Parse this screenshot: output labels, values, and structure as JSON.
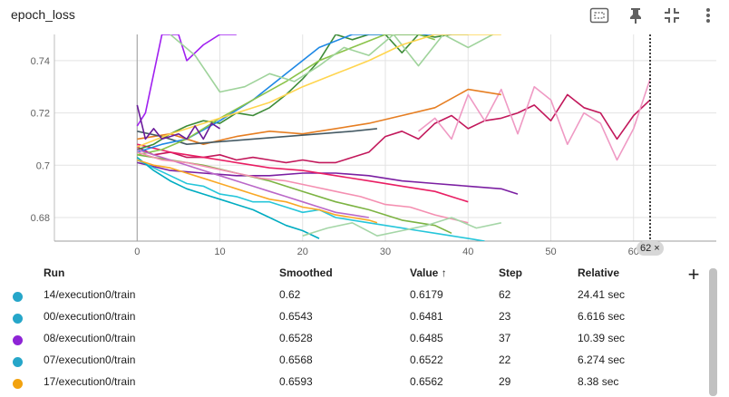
{
  "header": {
    "title": "epoch_loss",
    "icons": [
      "fit-domain-icon",
      "pin-icon",
      "collapse-icon",
      "more-vert-icon"
    ]
  },
  "chart_data": {
    "type": "line",
    "xlim": [
      -10,
      70
    ],
    "ylim": [
      0.671,
      0.75
    ],
    "x_ticks": [
      0,
      10,
      20,
      30,
      40,
      50,
      60
    ],
    "x_tick_labels": [
      "0",
      "10",
      "20",
      "30",
      "40",
      "50",
      "60"
    ],
    "y_ticks": [
      0.68,
      0.7,
      0.72,
      0.74
    ],
    "y_tick_labels": [
      "0.68",
      "0.7",
      "0.72",
      "0.74"
    ],
    "grid": true,
    "hover_step": 62,
    "hover_label": "62 ×",
    "series": [
      {
        "color": "#c2185b",
        "x": [
          0,
          2,
          4,
          6,
          8,
          10,
          12,
          14,
          16,
          18,
          20,
          22,
          24,
          26,
          28,
          30,
          32,
          34,
          36,
          38,
          40,
          42,
          44,
          46,
          48,
          50,
          52,
          54,
          56,
          58,
          60,
          62
        ],
        "y": [
          0.707,
          0.704,
          0.705,
          0.703,
          0.703,
          0.704,
          0.702,
          0.703,
          0.702,
          0.701,
          0.702,
          0.701,
          0.701,
          0.703,
          0.705,
          0.711,
          0.713,
          0.71,
          0.716,
          0.719,
          0.714,
          0.717,
          0.718,
          0.72,
          0.723,
          0.717,
          0.727,
          0.722,
          0.72,
          0.71,
          0.719,
          0.725
        ]
      },
      {
        "color": "#ef9ac4",
        "x": [
          34,
          36,
          38,
          40,
          42,
          44,
          46,
          48,
          50,
          52,
          54,
          56,
          58,
          60,
          62
        ],
        "y": [
          0.713,
          0.718,
          0.71,
          0.727,
          0.717,
          0.729,
          0.712,
          0.73,
          0.725,
          0.708,
          0.72,
          0.716,
          0.702,
          0.714,
          0.733
        ]
      },
      {
        "color": "#7b1fa2",
        "x": [
          0,
          4,
          8,
          12,
          16,
          20,
          24,
          28,
          32,
          36,
          40,
          44,
          46
        ],
        "y": [
          0.701,
          0.698,
          0.697,
          0.696,
          0.696,
          0.697,
          0.697,
          0.696,
          0.694,
          0.693,
          0.692,
          0.691,
          0.689
        ]
      },
      {
        "color": "#a020f0",
        "x": [
          0,
          1,
          2,
          3,
          4,
          5,
          6,
          8,
          10,
          12
        ],
        "y": [
          0.715,
          0.72,
          0.735,
          0.75,
          0.75,
          0.75,
          0.74,
          0.746,
          0.75,
          0.75
        ]
      },
      {
        "color": "#26c6da",
        "x": [
          0,
          2,
          4,
          6,
          8,
          10,
          12,
          14,
          16,
          18,
          20,
          22,
          24,
          26,
          28,
          30,
          32,
          34,
          36,
          38,
          40,
          42
        ],
        "y": [
          0.702,
          0.699,
          0.696,
          0.693,
          0.692,
          0.689,
          0.688,
          0.686,
          0.686,
          0.684,
          0.682,
          0.683,
          0.68,
          0.679,
          0.678,
          0.677,
          0.676,
          0.675,
          0.674,
          0.673,
          0.672,
          0.671
        ]
      },
      {
        "color": "#00acc1",
        "x": [
          0,
          2,
          4,
          6,
          8,
          10,
          12,
          14,
          16,
          18,
          20,
          22
        ],
        "y": [
          0.703,
          0.698,
          0.694,
          0.691,
          0.689,
          0.687,
          0.685,
          0.683,
          0.68,
          0.677,
          0.675,
          0.672
        ]
      },
      {
        "color": "#f9a825",
        "x": [
          0,
          2,
          4,
          6,
          8,
          10,
          12,
          14,
          16,
          18,
          20,
          22,
          24,
          26,
          28,
          29
        ],
        "y": [
          0.702,
          0.7,
          0.699,
          0.697,
          0.695,
          0.693,
          0.691,
          0.689,
          0.687,
          0.686,
          0.684,
          0.683,
          0.681,
          0.68,
          0.679,
          0.678
        ]
      },
      {
        "color": "#7cb342",
        "x": [
          0,
          4,
          8,
          12,
          16,
          20,
          24,
          28,
          32,
          36,
          38
        ],
        "y": [
          0.704,
          0.702,
          0.7,
          0.697,
          0.694,
          0.69,
          0.686,
          0.683,
          0.679,
          0.677,
          0.674
        ]
      },
      {
        "color": "#e67e22",
        "x": [
          0,
          4,
          8,
          12,
          16,
          20,
          24,
          28,
          32,
          36,
          40,
          44
        ],
        "y": [
          0.71,
          0.712,
          0.708,
          0.711,
          0.713,
          0.712,
          0.714,
          0.716,
          0.719,
          0.722,
          0.729,
          0.727
        ]
      },
      {
        "color": "#e91e63",
        "x": [
          0,
          4,
          8,
          12,
          16,
          20,
          24,
          28,
          32,
          36,
          40
        ],
        "y": [
          0.708,
          0.705,
          0.703,
          0.701,
          0.699,
          0.698,
          0.696,
          0.694,
          0.692,
          0.69,
          0.686
        ]
      },
      {
        "color": "#3d8b37",
        "x": [
          0,
          2,
          4,
          6,
          8,
          10,
          12,
          14,
          16,
          18,
          20,
          22,
          24,
          26,
          28,
          30,
          32,
          34,
          36,
          38,
          40
        ],
        "y": [
          0.706,
          0.708,
          0.712,
          0.715,
          0.717,
          0.716,
          0.72,
          0.719,
          0.722,
          0.727,
          0.733,
          0.74,
          0.75,
          0.748,
          0.75,
          0.75,
          0.743,
          0.75,
          0.749,
          0.75,
          0.75
        ]
      },
      {
        "color": "#455a64",
        "x": [
          0,
          3,
          6,
          10,
          14,
          18,
          22,
          26,
          29
        ],
        "y": [
          0.713,
          0.711,
          0.708,
          0.709,
          0.71,
          0.711,
          0.712,
          0.713,
          0.714
        ]
      },
      {
        "color": "#1e88e5",
        "x": [
          0,
          3,
          6,
          10,
          14,
          18,
          22,
          26,
          30,
          34,
          38
        ],
        "y": [
          0.705,
          0.708,
          0.71,
          0.717,
          0.725,
          0.735,
          0.745,
          0.75,
          0.75,
          0.75,
          0.75
        ]
      },
      {
        "color": "#8bc34a",
        "x": [
          0,
          3,
          6,
          10,
          14,
          18,
          22,
          26,
          30,
          34,
          36
        ],
        "y": [
          0.704,
          0.706,
          0.71,
          0.718,
          0.725,
          0.732,
          0.74,
          0.745,
          0.75,
          0.75,
          0.748
        ]
      },
      {
        "color": "#ba68c8",
        "x": [
          0,
          2,
          4,
          6,
          8,
          10,
          12,
          14,
          16,
          18,
          20,
          22,
          24,
          26,
          28
        ],
        "y": [
          0.706,
          0.704,
          0.702,
          0.7,
          0.698,
          0.696,
          0.694,
          0.692,
          0.69,
          0.688,
          0.686,
          0.684,
          0.682,
          0.681,
          0.68
        ]
      },
      {
        "color": "#f48fb1",
        "x": [
          0,
          3,
          6,
          9,
          12,
          15,
          18,
          21,
          24,
          27,
          30,
          33,
          36,
          40
        ],
        "y": [
          0.705,
          0.702,
          0.701,
          0.699,
          0.697,
          0.695,
          0.694,
          0.692,
          0.69,
          0.688,
          0.685,
          0.684,
          0.681,
          0.678
        ]
      },
      {
        "color": "#9fd39b",
        "x": [
          4,
          7,
          10,
          13,
          16,
          19,
          22,
          25,
          28,
          31,
          34,
          37,
          40,
          43
        ],
        "y": [
          0.75,
          0.742,
          0.728,
          0.73,
          0.735,
          0.732,
          0.738,
          0.745,
          0.742,
          0.75,
          0.738,
          0.75,
          0.745,
          0.75
        ]
      },
      {
        "color": "#ffd54f",
        "x": [
          0,
          4,
          8,
          12,
          16,
          20,
          24,
          28,
          32,
          36,
          40,
          44
        ],
        "y": [
          0.707,
          0.712,
          0.716,
          0.72,
          0.724,
          0.73,
          0.735,
          0.74,
          0.746,
          0.75,
          0.75,
          0.75
        ]
      },
      {
        "color": "#a5d6a7",
        "x": [
          20,
          23,
          26,
          29,
          32,
          35,
          38,
          41,
          44
        ],
        "y": [
          0.673,
          0.676,
          0.678,
          0.673,
          0.675,
          0.677,
          0.68,
          0.676,
          0.678
        ]
      },
      {
        "color": "#6a1b9a",
        "x": [
          0,
          1,
          2,
          3,
          4,
          5,
          6,
          7,
          8,
          9,
          10
        ],
        "y": [
          0.723,
          0.71,
          0.714,
          0.71,
          0.711,
          0.712,
          0.71,
          0.715,
          0.71,
          0.716,
          0.714
        ]
      }
    ]
  },
  "table": {
    "add_column_label": "+",
    "columns": {
      "run": "Run",
      "smoothed": "Smoothed",
      "value": "Value ↑",
      "step": "Step",
      "relative": "Relative"
    },
    "rows": [
      {
        "color": "#26a6c9",
        "run": "14/execution0/train",
        "smoothed": "0.62",
        "value": "0.6179",
        "step": "62",
        "relative": "24.41 sec"
      },
      {
        "color": "#26a6c9",
        "run": "00/execution0/train",
        "smoothed": "0.6543",
        "value": "0.6481",
        "step": "23",
        "relative": "6.616 sec"
      },
      {
        "color": "#8e24d6",
        "run": "08/execution0/train",
        "smoothed": "0.6528",
        "value": "0.6485",
        "step": "37",
        "relative": "10.39 sec"
      },
      {
        "color": "#26a6c9",
        "run": "07/execution0/train",
        "smoothed": "0.6568",
        "value": "0.6522",
        "step": "22",
        "relative": "6.274 sec"
      },
      {
        "color": "#f2a20f",
        "run": "17/execution0/train",
        "smoothed": "0.6593",
        "value": "0.6562",
        "step": "29",
        "relative": "8.38 sec"
      }
    ]
  }
}
